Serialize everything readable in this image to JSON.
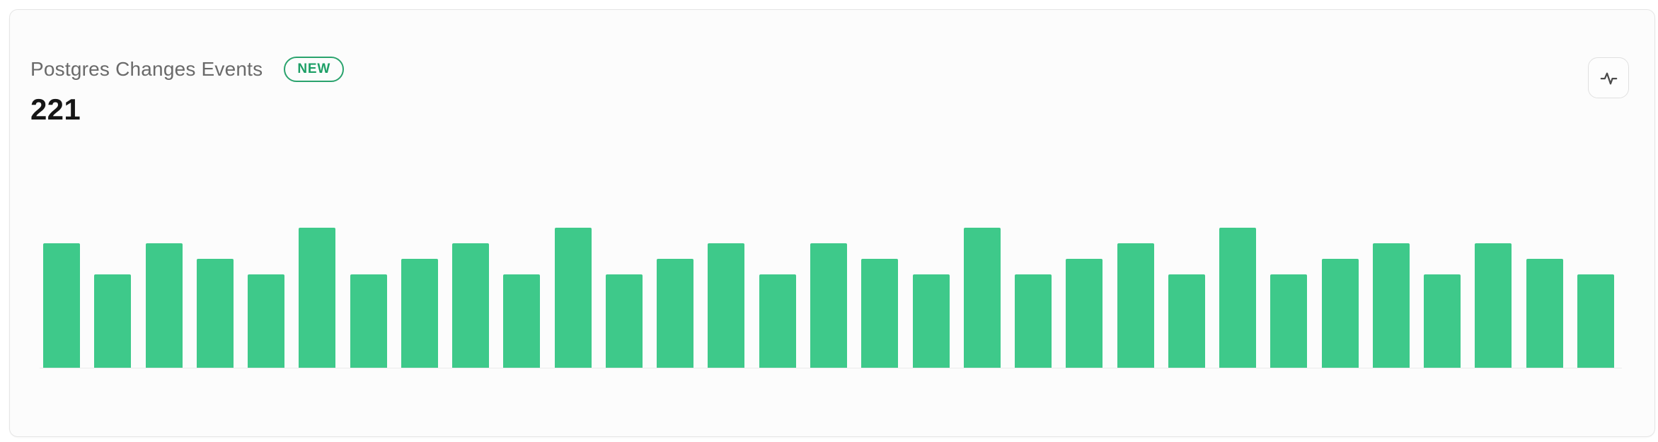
{
  "card": {
    "title": "Postgres Changes Events",
    "badge_label": "NEW",
    "value": "221"
  },
  "toolbar": {
    "activity_button_icon": "activity-pulse-icon"
  },
  "colors": {
    "bar_green": "#3EC98A",
    "badge_green": "#1d9f66",
    "badge_border_green": "#2aa36d"
  },
  "chart_data": {
    "type": "bar",
    "title": "Postgres Changes Events",
    "total_label": "221",
    "values": [
      8,
      6,
      8,
      7,
      6,
      9,
      6,
      7,
      8,
      6,
      9,
      6,
      7,
      8,
      6,
      8,
      7,
      6,
      9,
      6,
      7,
      8,
      6,
      9,
      6,
      7,
      8,
      6,
      8,
      7,
      6
    ],
    "values_sum": 221,
    "bar_color": "#3EC98A",
    "ylim": [
      0,
      9
    ],
    "xlabel": "",
    "ylabel": "",
    "x_tick_labels": [],
    "y_tick_labels": [],
    "grid": false,
    "legend": false,
    "layout_hint": "31 vertical bars, bottom-aligned, no visible axes labels, faint baseline"
  }
}
